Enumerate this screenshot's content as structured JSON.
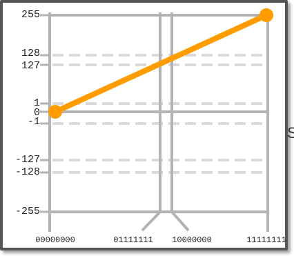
{
  "chart_data": {
    "type": "line",
    "x_tick_labels": [
      "00000000",
      "01111111",
      "10000000",
      "11111111"
    ],
    "y_tick_labels": [
      "255",
      "128",
      "127",
      "1",
      "0",
      "-1",
      "-127",
      "-128",
      "-255"
    ],
    "series": [
      {
        "points": [
          {
            "x": "00000000",
            "y": 0
          },
          {
            "x": "11111111",
            "y": 255
          }
        ]
      }
    ],
    "dashed_reference_lines": [
      128,
      127,
      1,
      -1,
      -127,
      -128
    ],
    "grid": true,
    "colors": {
      "line": "#ff9d00",
      "axes": "#b3b3b3",
      "reference": "#d9d9d9",
      "frame": "#555555"
    }
  },
  "partial_label": "S"
}
